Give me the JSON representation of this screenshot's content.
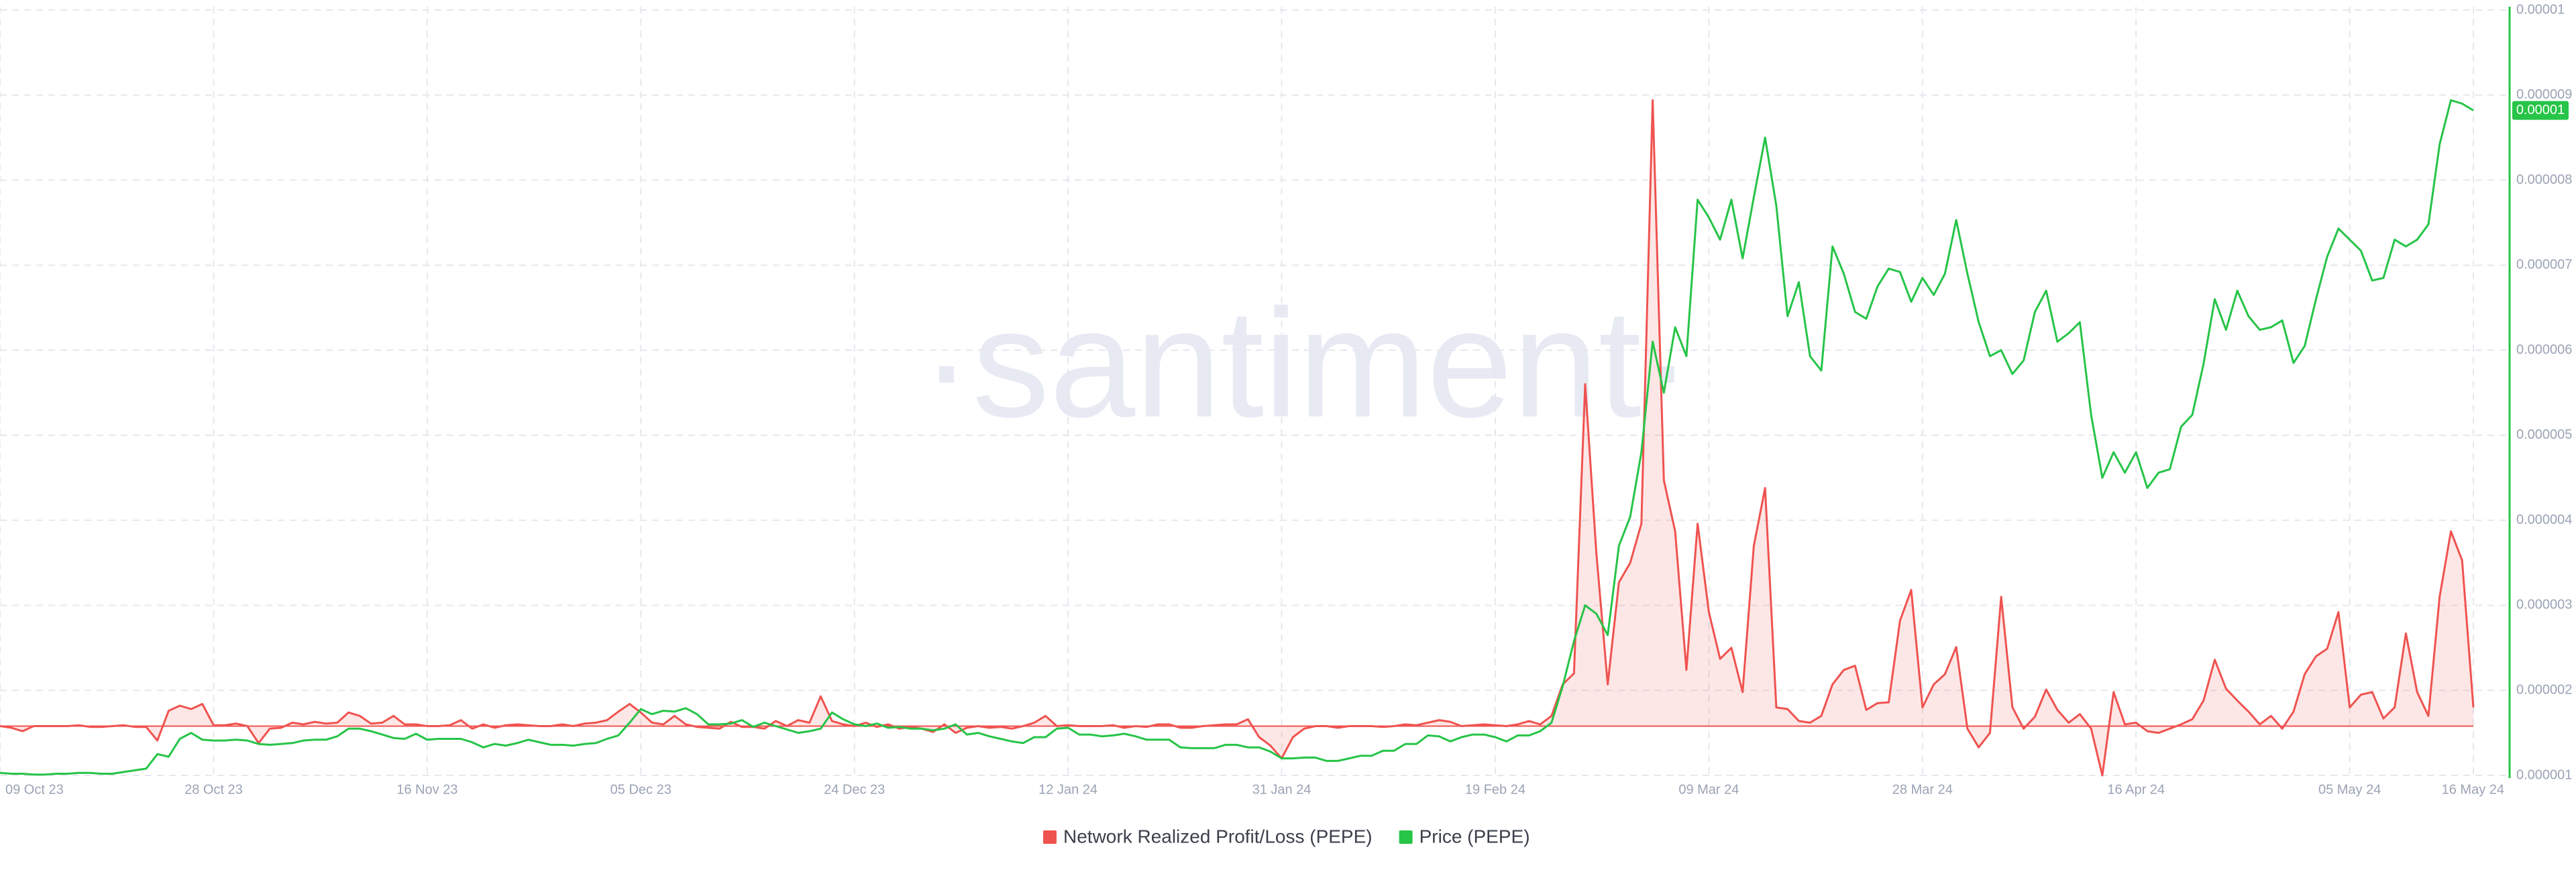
{
  "chart_data": {
    "type": "line",
    "watermark": "·santiment·",
    "x": [
      "09 Oct 23",
      null,
      null,
      null,
      null,
      null,
      null,
      null,
      null,
      null,
      null,
      null,
      null,
      null,
      null,
      null,
      null,
      null,
      null,
      "28 Oct 23",
      null,
      null,
      null,
      null,
      null,
      null,
      null,
      null,
      null,
      null,
      null,
      null,
      null,
      null,
      null,
      null,
      null,
      null,
      "16 Nov 23",
      null,
      null,
      null,
      null,
      null,
      null,
      null,
      null,
      null,
      null,
      null,
      null,
      null,
      null,
      null,
      null,
      null,
      null,
      "05 Dec 23",
      null,
      null,
      null,
      null,
      null,
      null,
      null,
      null,
      null,
      null,
      null,
      null,
      null,
      null,
      null,
      null,
      null,
      null,
      "24 Dec 23",
      null,
      null,
      null,
      null,
      null,
      null,
      null,
      null,
      null,
      null,
      null,
      null,
      null,
      null,
      null,
      null,
      null,
      null,
      "12 Jan 24",
      null,
      null,
      null,
      null,
      null,
      null,
      null,
      null,
      null,
      null,
      null,
      null,
      null,
      null,
      null,
      null,
      null,
      null,
      "31 Jan 24",
      null,
      null,
      null,
      null,
      null,
      null,
      null,
      null,
      null,
      null,
      null,
      null,
      null,
      null,
      null,
      null,
      null,
      null,
      "19 Feb 24",
      null,
      null,
      null,
      null,
      null,
      null,
      null,
      null,
      null,
      null,
      null,
      null,
      null,
      null,
      null,
      null,
      null,
      null,
      "09 Mar 24",
      null,
      null,
      null,
      null,
      null,
      null,
      null,
      null,
      null,
      null,
      null,
      null,
      null,
      null,
      null,
      null,
      null,
      null,
      "28 Mar 24",
      null,
      null,
      null,
      null,
      null,
      null,
      null,
      null,
      null,
      null,
      null,
      null,
      null,
      null,
      null,
      null,
      null,
      null,
      "16 Apr 24",
      null,
      null,
      null,
      null,
      null,
      null,
      null,
      null,
      null,
      null,
      null,
      null,
      null,
      null,
      null,
      null,
      null,
      null,
      "05 May 24",
      null,
      null,
      null,
      null,
      null,
      null,
      null,
      null,
      null,
      null,
      "16 May 24"
    ],
    "y2lim": [
      1e-06,
      1e-05
    ],
    "y2ticks": [
      1e-06,
      2e-06,
      3e-06,
      4e-06,
      5e-06,
      6e-06,
      7e-06,
      8e-06,
      9e-06,
      1e-05
    ],
    "grid": true,
    "series": [
      {
        "name": "Network Realized Profit/Loss (PEPE)",
        "color": "#ef5350",
        "fill": "rgba(239,83,80,0.14)",
        "axis": "y2",
        "values": [
          1.58e-06,
          1.56e-06,
          1.52e-06,
          1.58e-06,
          1.58e-06,
          1.58e-06,
          1.58e-06,
          1.59e-06,
          1.57e-06,
          1.57e-06,
          1.58e-06,
          1.59e-06,
          1.57e-06,
          1.57e-06,
          1.41e-06,
          1.76e-06,
          1.82e-06,
          1.78e-06,
          1.84e-06,
          1.59e-06,
          1.59e-06,
          1.61e-06,
          1.58e-06,
          1.38e-06,
          1.55e-06,
          1.56e-06,
          1.62e-06,
          1.6e-06,
          1.63e-06,
          1.61e-06,
          1.62e-06,
          1.74e-06,
          1.7e-06,
          1.61e-06,
          1.62e-06,
          1.7e-06,
          1.6e-06,
          1.6e-06,
          1.58e-06,
          1.58e-06,
          1.59e-06,
          1.65e-06,
          1.55e-06,
          1.6e-06,
          1.56e-06,
          1.59e-06,
          1.6e-06,
          1.59e-06,
          1.58e-06,
          1.58e-06,
          1.6e-06,
          1.58e-06,
          1.61e-06,
          1.62e-06,
          1.65e-06,
          1.75e-06,
          1.84e-06,
          1.74e-06,
          1.62e-06,
          1.6e-06,
          1.7e-06,
          1.6e-06,
          1.57e-06,
          1.56e-06,
          1.55e-06,
          1.63e-06,
          1.57e-06,
          1.57e-06,
          1.55e-06,
          1.64e-06,
          1.58e-06,
          1.65e-06,
          1.62e-06,
          1.93e-06,
          1.64e-06,
          1.6e-06,
          1.58e-06,
          1.62e-06,
          1.57e-06,
          1.6e-06,
          1.55e-06,
          1.57e-06,
          1.55e-06,
          1.51e-06,
          1.6e-06,
          1.5e-06,
          1.56e-06,
          1.58e-06,
          1.56e-06,
          1.57e-06,
          1.55e-06,
          1.58e-06,
          1.62e-06,
          1.7e-06,
          1.58e-06,
          1.59e-06,
          1.58e-06,
          1.58e-06,
          1.58e-06,
          1.59e-06,
          1.56e-06,
          1.58e-06,
          1.57e-06,
          1.6e-06,
          1.6e-06,
          1.56e-06,
          1.56e-06,
          1.58e-06,
          1.59e-06,
          1.6e-06,
          1.6e-06,
          1.66e-06,
          1.45e-06,
          1.35e-06,
          1.2e-06,
          1.45e-06,
          1.55e-06,
          1.58e-06,
          1.58e-06,
          1.56e-06,
          1.58e-06,
          1.58e-06,
          1.58e-06,
          1.57e-06,
          1.58e-06,
          1.6e-06,
          1.59e-06,
          1.62e-06,
          1.65e-06,
          1.63e-06,
          1.58e-06,
          1.59e-06,
          1.6e-06,
          1.59e-06,
          1.58e-06,
          1.6e-06,
          1.64e-06,
          1.6e-06,
          1.7e-06,
          2.07e-06,
          2.2e-06,
          5.6e-06,
          3.6e-06,
          2.07e-06,
          3.27e-06,
          3.5e-06,
          3.96e-06,
          8.94e-06,
          4.47e-06,
          3.87e-06,
          2.24e-06,
          3.96e-06,
          2.92e-06,
          2.37e-06,
          2.5e-06,
          1.98e-06,
          3.7e-06,
          4.38e-06,
          1.8e-06,
          1.78e-06,
          1.64e-06,
          1.62e-06,
          1.7e-06,
          2.07e-06,
          2.24e-06,
          2.29e-06,
          1.77e-06,
          1.85e-06,
          1.86e-06,
          2.82e-06,
          3.18e-06,
          1.8e-06,
          2.07e-06,
          2.19e-06,
          2.51e-06,
          1.55e-06,
          1.33e-06,
          1.5e-06,
          3.1e-06,
          1.8e-06,
          1.55e-06,
          1.69e-06,
          2.01e-06,
          1.77e-06,
          1.62e-06,
          1.72e-06,
          1.55e-06,
          1e-06,
          1.98e-06,
          1.6e-06,
          1.62e-06,
          1.52e-06,
          1.5e-06,
          1.55e-06,
          1.6e-06,
          1.66e-06,
          1.88e-06,
          2.36e-06,
          2.02e-06,
          1.88e-06,
          1.75e-06,
          1.6e-06,
          1.7e-06,
          1.55e-06,
          1.75e-06,
          2.19e-06,
          2.4e-06,
          2.49e-06,
          2.92e-06,
          1.8e-06,
          1.95e-06,
          1.98e-06,
          1.67e-06,
          1.8e-06,
          2.67e-06,
          1.98e-06,
          1.7e-06,
          3.1e-06,
          3.87e-06,
          3.53e-06,
          1.8e-06
        ]
      },
      {
        "name": "Price (PEPE)",
        "color": "#26c447",
        "axis": "y2",
        "last_value_label": "0.00001",
        "values": [
          1.03e-06,
          1.02e-06,
          1.02e-06,
          1.01e-06,
          1.01e-06,
          1.02e-06,
          1.02e-06,
          1.03e-06,
          1.03e-06,
          1.02e-06,
          1.02e-06,
          1.04e-06,
          1.06e-06,
          1.08e-06,
          1.25e-06,
          1.22e-06,
          1.43e-06,
          1.5e-06,
          1.42e-06,
          1.41e-06,
          1.41e-06,
          1.42e-06,
          1.41e-06,
          1.37e-06,
          1.36e-06,
          1.37e-06,
          1.38e-06,
          1.41e-06,
          1.42e-06,
          1.42e-06,
          1.46e-06,
          1.55e-06,
          1.55e-06,
          1.52e-06,
          1.48e-06,
          1.44e-06,
          1.43e-06,
          1.49e-06,
          1.42e-06,
          1.43e-06,
          1.43e-06,
          1.43e-06,
          1.39e-06,
          1.33e-06,
          1.37e-06,
          1.35e-06,
          1.38e-06,
          1.42e-06,
          1.39e-06,
          1.36e-06,
          1.36e-06,
          1.35e-06,
          1.37e-06,
          1.38e-06,
          1.43e-06,
          1.47e-06,
          1.62e-06,
          1.78e-06,
          1.72e-06,
          1.76e-06,
          1.75e-06,
          1.79e-06,
          1.72e-06,
          1.6e-06,
          1.6e-06,
          1.61e-06,
          1.65e-06,
          1.57e-06,
          1.62e-06,
          1.58e-06,
          1.54e-06,
          1.5e-06,
          1.52e-06,
          1.55e-06,
          1.74e-06,
          1.66e-06,
          1.6e-06,
          1.58e-06,
          1.61e-06,
          1.56e-06,
          1.57e-06,
          1.55e-06,
          1.55e-06,
          1.53e-06,
          1.55e-06,
          1.6e-06,
          1.48e-06,
          1.5e-06,
          1.46e-06,
          1.43e-06,
          1.4e-06,
          1.38e-06,
          1.45e-06,
          1.45e-06,
          1.55e-06,
          1.56e-06,
          1.48e-06,
          1.48e-06,
          1.46e-06,
          1.47e-06,
          1.49e-06,
          1.46e-06,
          1.42e-06,
          1.42e-06,
          1.42e-06,
          1.33e-06,
          1.32e-06,
          1.32e-06,
          1.32e-06,
          1.36e-06,
          1.36e-06,
          1.33e-06,
          1.33e-06,
          1.28e-06,
          1.2e-06,
          1.2e-06,
          1.21e-06,
          1.21e-06,
          1.17e-06,
          1.17e-06,
          1.2e-06,
          1.23e-06,
          1.23e-06,
          1.29e-06,
          1.29e-06,
          1.37e-06,
          1.37e-06,
          1.47e-06,
          1.46e-06,
          1.4e-06,
          1.45e-06,
          1.48e-06,
          1.48e-06,
          1.45e-06,
          1.4e-06,
          1.47e-06,
          1.47e-06,
          1.52e-06,
          1.62e-06,
          2.05e-06,
          2.58e-06,
          3e-06,
          2.9e-06,
          2.65e-06,
          3.7e-06,
          4.04e-06,
          4.8e-06,
          6.1e-06,
          5.5e-06,
          6.27e-06,
          5.93e-06,
          7.77e-06,
          7.56e-06,
          7.3e-06,
          7.77e-06,
          7.08e-06,
          7.8e-06,
          8.5e-06,
          7.7e-06,
          6.4e-06,
          6.8e-06,
          5.93e-06,
          5.76e-06,
          7.22e-06,
          6.9e-06,
          6.45e-06,
          6.37e-06,
          6.75e-06,
          6.96e-06,
          6.92e-06,
          6.57e-06,
          6.85e-06,
          6.65e-06,
          6.9e-06,
          7.53e-06,
          6.9e-06,
          6.33e-06,
          5.93e-06,
          6e-06,
          5.72e-06,
          5.88e-06,
          6.45e-06,
          6.7e-06,
          6.1e-06,
          6.2e-06,
          6.33e-06,
          5.24e-06,
          4.5e-06,
          4.8e-06,
          4.56e-06,
          4.8e-06,
          4.38e-06,
          4.56e-06,
          4.6e-06,
          5.1e-06,
          5.24e-06,
          5.84e-06,
          6.6e-06,
          6.24e-06,
          6.7e-06,
          6.4e-06,
          6.24e-06,
          6.27e-06,
          6.35e-06,
          5.85e-06,
          6.05e-06,
          6.6e-06,
          7.1e-06,
          7.43e-06,
          7.3e-06,
          7.17e-06,
          6.82e-06,
          6.85e-06,
          7.3e-06,
          7.22e-06,
          7.3e-06,
          7.48e-06,
          8.42e-06,
          8.94e-06,
          8.9e-06,
          8.82e-06
        ]
      }
    ]
  }
}
